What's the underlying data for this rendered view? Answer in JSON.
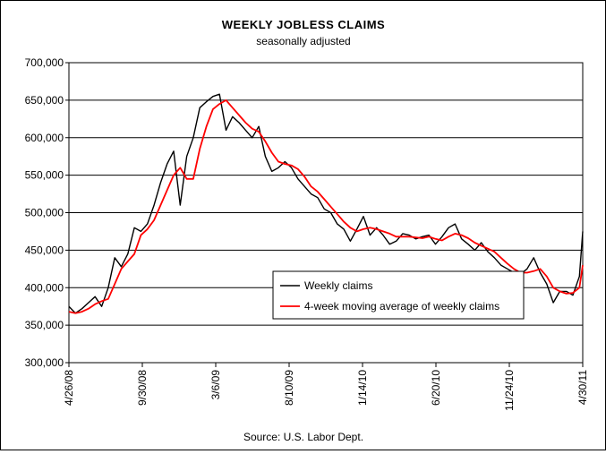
{
  "chart_data": {
    "type": "line",
    "title": "WEEKLY JOBLESS CLAIMS",
    "subtitle": "seasonally adjusted",
    "source": "Source: U.S. Labor Dept.",
    "ylim": [
      300000,
      700000
    ],
    "yticks": [
      300000,
      350000,
      400000,
      450000,
      500000,
      550000,
      600000,
      650000,
      700000
    ],
    "ytick_labels": [
      "300,000",
      "350,000",
      "400,000",
      "450,000",
      "500,000",
      "550,000",
      "600,000",
      "650,000",
      "700,000"
    ],
    "xlim": [
      "4/26/08",
      "4/30/11"
    ],
    "xticks": [
      "4/26/08",
      "9/30/08",
      "3/6/09",
      "8/10/09",
      "1/14/10",
      "6/20/10",
      "11/24/10",
      "4/30/11"
    ],
    "grid": "horizontal",
    "legend_position": "bottom-right inside plot",
    "series": [
      {
        "name": "Weekly claims",
        "color": "#000000",
        "x": [
          "2008-04-26",
          "2008-05-10",
          "2008-05-24",
          "2008-06-07",
          "2008-06-21",
          "2008-07-05",
          "2008-07-19",
          "2008-08-02",
          "2008-08-16",
          "2008-08-30",
          "2008-09-13",
          "2008-09-27",
          "2008-10-11",
          "2008-10-25",
          "2008-11-08",
          "2008-11-22",
          "2008-12-06",
          "2008-12-20",
          "2009-01-03",
          "2009-01-17",
          "2009-01-31",
          "2009-02-14",
          "2009-02-28",
          "2009-03-14",
          "2009-03-28",
          "2009-04-11",
          "2009-04-25",
          "2009-05-09",
          "2009-05-23",
          "2009-06-06",
          "2009-06-20",
          "2009-07-04",
          "2009-07-18",
          "2009-08-01",
          "2009-08-15",
          "2009-08-29",
          "2009-09-12",
          "2009-09-26",
          "2009-10-10",
          "2009-10-24",
          "2009-11-07",
          "2009-11-21",
          "2009-12-05",
          "2009-12-19",
          "2010-01-02",
          "2010-01-16",
          "2010-01-30",
          "2010-02-13",
          "2010-02-27",
          "2010-03-13",
          "2010-03-27",
          "2010-04-10",
          "2010-04-24",
          "2010-05-08",
          "2010-05-22",
          "2010-06-05",
          "2010-06-19",
          "2010-07-03",
          "2010-07-17",
          "2010-07-31",
          "2010-08-14",
          "2010-08-28",
          "2010-09-11",
          "2010-09-25",
          "2010-10-09",
          "2010-10-23",
          "2010-11-06",
          "2010-11-20",
          "2010-12-04",
          "2010-12-18",
          "2011-01-01",
          "2011-01-15",
          "2011-01-29",
          "2011-02-12",
          "2011-02-26",
          "2011-03-12",
          "2011-03-26",
          "2011-04-09",
          "2011-04-23",
          "2011-04-30"
        ],
        "values": [
          375000,
          366000,
          372000,
          380000,
          388000,
          375000,
          400000,
          440000,
          428000,
          445000,
          480000,
          475000,
          485000,
          510000,
          540000,
          565000,
          582000,
          510000,
          575000,
          600000,
          640000,
          648000,
          655000,
          658000,
          610000,
          628000,
          620000,
          610000,
          600000,
          615000,
          575000,
          555000,
          560000,
          568000,
          560000,
          545000,
          535000,
          525000,
          520000,
          505000,
          500000,
          485000,
          478000,
          462000,
          478000,
          495000,
          470000,
          480000,
          470000,
          458000,
          462000,
          472000,
          470000,
          465000,
          468000,
          470000,
          458000,
          468000,
          480000,
          485000,
          465000,
          458000,
          450000,
          460000,
          448000,
          440000,
          430000,
          425000,
          420000,
          418000,
          425000,
          440000,
          420000,
          405000,
          380000,
          395000,
          395000,
          390000,
          415000,
          475000
        ]
      },
      {
        "name": "4-week moving average of weekly claims",
        "color": "#ff0000",
        "x": [
          "2008-04-26",
          "2008-05-10",
          "2008-05-24",
          "2008-06-07",
          "2008-06-21",
          "2008-07-05",
          "2008-07-19",
          "2008-08-02",
          "2008-08-16",
          "2008-08-30",
          "2008-09-13",
          "2008-09-27",
          "2008-10-11",
          "2008-10-25",
          "2008-11-08",
          "2008-11-22",
          "2008-12-06",
          "2008-12-20",
          "2009-01-03",
          "2009-01-17",
          "2009-01-31",
          "2009-02-14",
          "2009-02-28",
          "2009-03-14",
          "2009-03-28",
          "2009-04-11",
          "2009-04-25",
          "2009-05-09",
          "2009-05-23",
          "2009-06-06",
          "2009-06-20",
          "2009-07-04",
          "2009-07-18",
          "2009-08-01",
          "2009-08-15",
          "2009-08-29",
          "2009-09-12",
          "2009-09-26",
          "2009-10-10",
          "2009-10-24",
          "2009-11-07",
          "2009-11-21",
          "2009-12-05",
          "2009-12-19",
          "2010-01-02",
          "2010-01-16",
          "2010-01-30",
          "2010-02-13",
          "2010-02-27",
          "2010-03-13",
          "2010-03-27",
          "2010-04-10",
          "2010-04-24",
          "2010-05-08",
          "2010-05-22",
          "2010-06-05",
          "2010-06-19",
          "2010-07-03",
          "2010-07-17",
          "2010-07-31",
          "2010-08-14",
          "2010-08-28",
          "2010-09-11",
          "2010-09-25",
          "2010-10-09",
          "2010-10-23",
          "2010-11-06",
          "2010-11-20",
          "2010-12-04",
          "2010-12-18",
          "2011-01-01",
          "2011-01-15",
          "2011-01-29",
          "2011-02-12",
          "2011-02-26",
          "2011-03-12",
          "2011-03-26",
          "2011-04-09",
          "2011-04-23",
          "2011-04-30"
        ],
        "values": [
          368000,
          366000,
          368000,
          372000,
          378000,
          382000,
          385000,
          405000,
          425000,
          435000,
          445000,
          470000,
          478000,
          490000,
          510000,
          530000,
          550000,
          560000,
          545000,
          545000,
          585000,
          615000,
          638000,
          645000,
          650000,
          640000,
          630000,
          620000,
          612000,
          608000,
          595000,
          580000,
          568000,
          565000,
          563000,
          558000,
          548000,
          535000,
          528000,
          518000,
          508000,
          498000,
          488000,
          480000,
          475000,
          478000,
          480000,
          478000,
          475000,
          472000,
          468000,
          468000,
          468000,
          467000,
          466000,
          468000,
          465000,
          463000,
          468000,
          472000,
          470000,
          466000,
          460000,
          456000,
          452000,
          448000,
          440000,
          432000,
          425000,
          420000,
          420000,
          422000,
          425000,
          415000,
          400000,
          395000,
          392000,
          393000,
          400000,
          430000
        ]
      }
    ]
  }
}
